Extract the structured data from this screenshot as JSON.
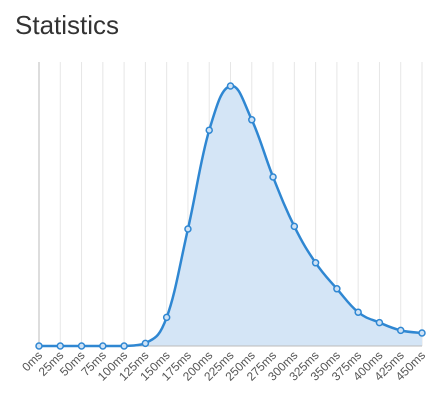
{
  "page": {
    "title": "Statistics"
  },
  "colors": {
    "line": "#2f87d2",
    "fill": "#d4e5f6",
    "point_fill": "#cfe2f5",
    "grid": "#e6e6e6",
    "axis": "#bbbbbb",
    "text": "#555555"
  },
  "chart_data": {
    "type": "area",
    "title": "",
    "xlabel": "",
    "ylabel": "",
    "categories": [
      "0ms",
      "25ms",
      "50ms",
      "75ms",
      "100ms",
      "125ms",
      "150ms",
      "175ms",
      "200ms",
      "225ms",
      "250ms",
      "275ms",
      "300ms",
      "325ms",
      "350ms",
      "375ms",
      "400ms",
      "425ms",
      "450ms"
    ],
    "series": [
      {
        "values": [
          0,
          0,
          0,
          0,
          0,
          1,
          11,
          45,
          83,
          100,
          87,
          65,
          46,
          32,
          22,
          13,
          9,
          6,
          5
        ]
      }
    ],
    "ylim": [
      0,
      100
    ],
    "grid": true,
    "legend": "none"
  }
}
